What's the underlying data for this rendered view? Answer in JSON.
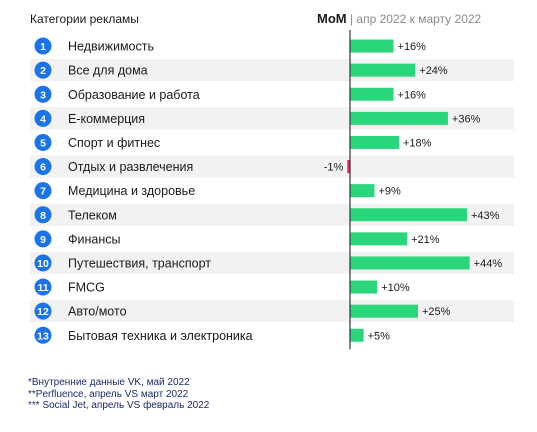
{
  "header": {
    "left_label": "Категории рекламы",
    "metric_label": "MoM",
    "separator": "|",
    "period_label": "апр 2022 к марту 2022"
  },
  "colors": {
    "positive_bar": "#2bd67b",
    "negative_bar": "#e0245e",
    "badge": "#1a73e8",
    "row_stripe": "#f2f2f2",
    "axis": "#333333"
  },
  "chart_data": {
    "type": "bar",
    "orientation": "horizontal",
    "title": "",
    "categories": [
      "Недвижимость",
      "Все для дома",
      "Образование и работа",
      "E-коммерция",
      "Спорт и фитнес",
      "Отдых и развлечения",
      "Медицина и здоровье",
      "Телеком",
      "Финансы",
      "Путешествия, транспорт",
      "FMCG",
      "Авто/мото",
      "Бытовая техника и электроника"
    ],
    "rank_numbers": [
      "1",
      "2",
      "3",
      "4",
      "5",
      "6",
      "7",
      "8",
      "9",
      "10",
      "11",
      "12",
      "13"
    ],
    "values": [
      16,
      24,
      16,
      36,
      18,
      -1,
      9,
      43,
      21,
      44,
      10,
      25,
      5
    ],
    "value_labels": [
      "+16%",
      "+24%",
      "+16%",
      "+36%",
      "+18%",
      "-1%",
      "+9%",
      "+43%",
      "+21%",
      "+44%",
      "+10%",
      "+25%",
      "+5%"
    ],
    "unit": "%",
    "grid": false,
    "legend": "none"
  },
  "footnotes": [
    "*Внутренние данные VK, май 2022",
    "**Perfluence, апрель VS март  2022",
    "*** Social Jet, апрель VS февраль 2022"
  ]
}
